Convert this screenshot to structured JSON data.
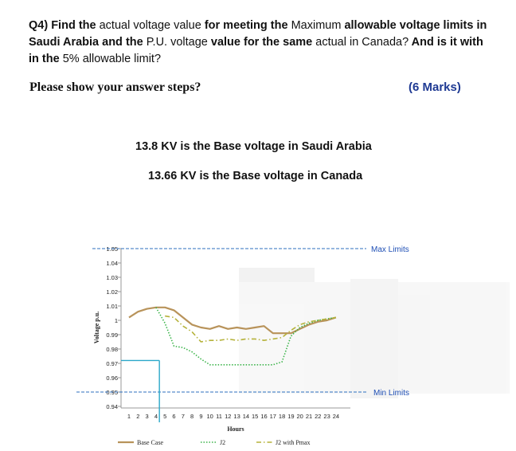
{
  "question": {
    "parts": [
      {
        "text": "Q4) Find the ",
        "bold": true
      },
      {
        "text": "actual voltage value ",
        "bold": false
      },
      {
        "text": "for meeting the ",
        "bold": true
      },
      {
        "text": "Maximum ",
        "bold": false
      },
      {
        "text": "allowable voltage",
        "bold": true
      },
      {
        "text": " limits in Saudi Arabia ",
        "bold": true
      },
      {
        "text": "and the ",
        "bold": true
      },
      {
        "text": "P.U. voltage ",
        "bold": false
      },
      {
        "text": "value for the same ",
        "bold": true
      },
      {
        "text": "actual in Canada?",
        "bold": false
      },
      {
        "text": " And is it with in the ",
        "bold": true
      },
      {
        "text": "5% allowable limit?",
        "bold": false
      }
    ],
    "steps_prompt": "Please show your answer steps?",
    "marks": "(6 Marks)"
  },
  "info": {
    "saudi": "13.8 KV is the Base voltage in Saudi Arabia",
    "canada": "13.66 KV is the Base voltage in Canada"
  },
  "colors": {
    "base_case": "#b8935a",
    "j2": "#3cb44b",
    "j2_pmax": "#b5b23a",
    "limit_line": "#2d6fbf",
    "annotation": "#2aa7c9",
    "limit_text": "#1f4fb5"
  },
  "chart_data": {
    "type": "line",
    "ylabel": "Voltage p.u.",
    "xlabel": "Hours",
    "x": [
      1,
      2,
      3,
      4,
      5,
      6,
      7,
      8,
      9,
      10,
      11,
      12,
      13,
      14,
      15,
      16,
      17,
      18,
      19,
      20,
      21,
      22,
      23,
      24
    ],
    "x_tick_labels": [
      "1",
      "2",
      "3",
      "4",
      "5",
      "6",
      "7",
      "8",
      "9",
      "10",
      "11",
      "12",
      "13",
      "14",
      "15",
      "16",
      "17",
      "18",
      "19",
      "20",
      "21",
      "22",
      "23",
      "24"
    ],
    "y_tick_labels": [
      "0.94",
      "0.95",
      "0.96",
      "0.97",
      "0.98",
      "0.99",
      "1",
      "1.01",
      "1.02",
      "1.03",
      "1.04",
      "1.05"
    ],
    "ylim": [
      0.94,
      1.05
    ],
    "series": [
      {
        "name": "Base Case",
        "style": "solid",
        "values": [
          1.002,
          1.006,
          1.008,
          1.009,
          1.009,
          1.007,
          1.002,
          0.997,
          0.995,
          0.994,
          0.996,
          0.994,
          0.995,
          0.994,
          0.995,
          0.996,
          0.991,
          0.991,
          0.991,
          0.994,
          0.997,
          0.999,
          1.0,
          1.002
        ]
      },
      {
        "name": "J2",
        "style": "dotted",
        "values": [
          null,
          null,
          null,
          1.009,
          0.998,
          0.982,
          0.981,
          0.978,
          0.973,
          0.969,
          0.969,
          0.969,
          0.969,
          0.969,
          0.969,
          0.969,
          0.969,
          0.971,
          0.989,
          0.995,
          0.998,
          1.0,
          1.001,
          1.002
        ]
      },
      {
        "name": "J2 with Pmax",
        "style": "dashdot",
        "values": [
          null,
          null,
          null,
          null,
          1.003,
          1.002,
          0.996,
          0.992,
          0.985,
          0.986,
          0.986,
          0.987,
          0.986,
          0.987,
          0.987,
          0.986,
          0.987,
          0.988,
          0.993,
          0.997,
          0.999,
          1.0,
          1.001,
          1.002
        ]
      }
    ],
    "limits": [
      {
        "label": "Max Limits",
        "value": 1.05
      },
      {
        "label": "Min Limits",
        "value": 0.95
      }
    ],
    "annotation": {
      "value": 0.972,
      "at_hour": 4.2
    }
  }
}
